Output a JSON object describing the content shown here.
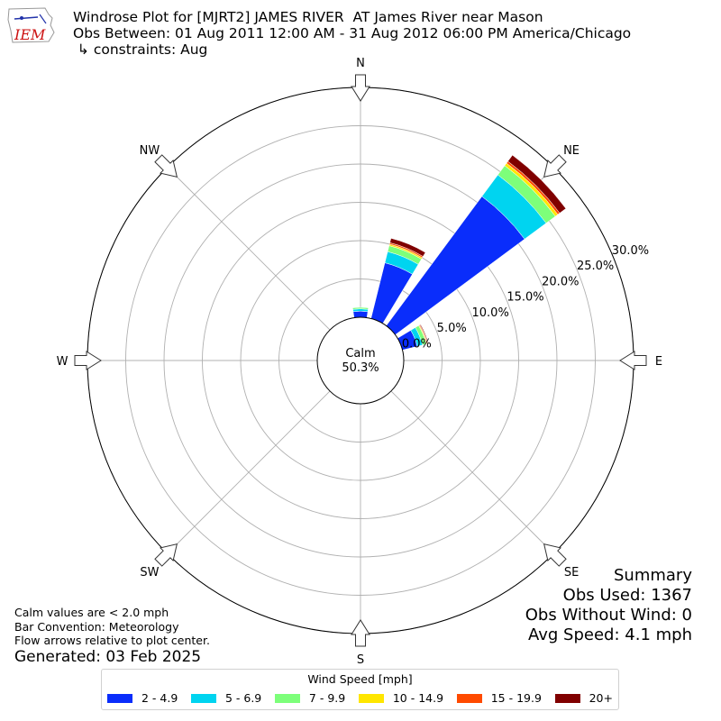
{
  "header": {
    "line1": "Windrose Plot for [MJRT2] JAMES RIVER  AT James River near Mason",
    "line2": "Obs Between: 01 Aug 2011 12:00 AM - 31 Aug 2012 06:00 PM America/Chicago",
    "line3": " ↳ constraints: Aug",
    "logo_text": "IEM"
  },
  "notes": {
    "calm": "Calm values are < 2.0 mph",
    "convention": "Bar Convention: Meteorology",
    "arrows": "Flow arrows relative to plot center.",
    "generated": "Generated: 03 Feb 2025"
  },
  "summary": {
    "title": "Summary",
    "obs_used": "Obs Used: 1367",
    "obs_without_wind": "Obs Without Wind: 0",
    "avg_speed": "Avg Speed: 4.1 mph"
  },
  "legend": {
    "title": "Wind Speed [mph]"
  },
  "chart_data": {
    "type": "windrose",
    "calm_label": "Calm",
    "calm_value": "50.3%",
    "directions": [
      "N",
      "NNE",
      "NE",
      "ENE"
    ],
    "direction_degrees": [
      0,
      22.5,
      45,
      67.5
    ],
    "rlim": [
      0,
      30
    ],
    "radial_ticks": [
      0,
      5,
      10,
      15,
      20,
      25,
      30
    ],
    "radial_tick_labels": [
      "0.0%",
      "5.0%",
      "10.0%",
      "15.0%",
      "20.0%",
      "25.0%",
      "30.0%"
    ],
    "compass_labels": [
      {
        "label": "N",
        "deg": 0
      },
      {
        "label": "NE",
        "deg": 45
      },
      {
        "label": "E",
        "deg": 90
      },
      {
        "label": "SE",
        "deg": 135
      },
      {
        "label": "S",
        "deg": 180
      },
      {
        "label": "SW",
        "deg": 225
      },
      {
        "label": "W",
        "deg": 270
      },
      {
        "label": "NW",
        "deg": 315
      }
    ],
    "bins": [
      {
        "name": "2 - 4.9",
        "color": "#0a2dfb"
      },
      {
        "name": "5 - 6.9",
        "color": "#00d4f0"
      },
      {
        "name": "7 - 9.9",
        "color": "#7dff7a"
      },
      {
        "name": "10 - 14.9",
        "color": "#ffe600"
      },
      {
        "name": "15 - 19.9",
        "color": "#ff4a00"
      },
      {
        "name": "20+",
        "color": "#800000"
      }
    ],
    "values": [
      [
        0.8,
        0.3,
        0.2,
        0.0,
        0.0,
        0.0
      ],
      [
        7.5,
        1.5,
        0.8,
        0.2,
        0.2,
        0.6
      ],
      [
        21.0,
        3.5,
        1.5,
        0.4,
        0.3,
        1.0
      ],
      [
        2.0,
        0.7,
        0.5,
        0.1,
        0.1,
        0.1
      ]
    ]
  }
}
